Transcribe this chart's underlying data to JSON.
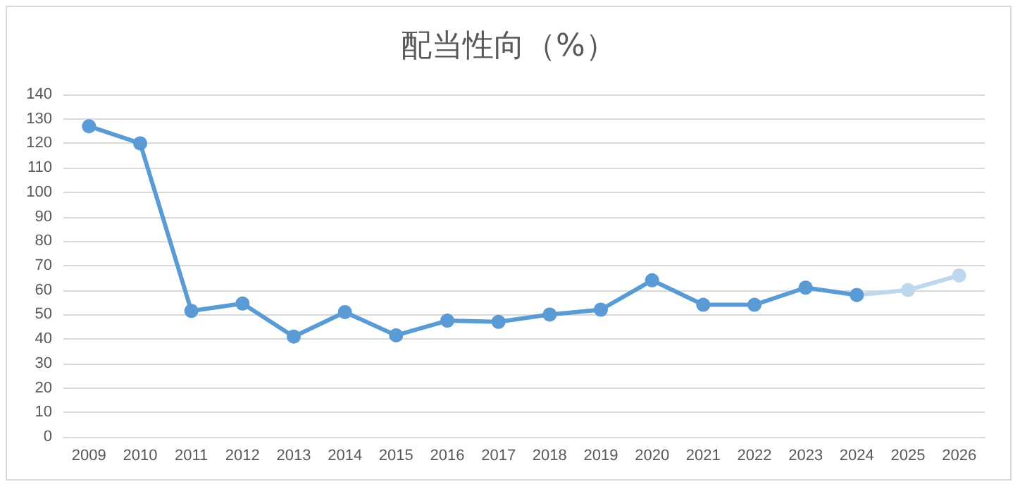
{
  "chart_data": {
    "type": "line",
    "title": "配当性向（%）",
    "categories": [
      "2009",
      "2010",
      "2011",
      "2012",
      "2013",
      "2014",
      "2015",
      "2016",
      "2017",
      "2018",
      "2019",
      "2020",
      "2021",
      "2022",
      "2023",
      "2024",
      "2025",
      "2026"
    ],
    "series": [
      {
        "color": "#5b9bd5",
        "values": [
          127,
          120,
          51.5,
          54.5,
          41,
          51,
          41.5,
          47.5,
          47,
          50,
          52,
          64,
          54,
          54,
          61,
          58,
          null,
          null
        ]
      },
      {
        "color": "#bdd7ee",
        "values": [
          null,
          null,
          null,
          null,
          null,
          null,
          null,
          null,
          null,
          null,
          null,
          null,
          null,
          null,
          null,
          58,
          60,
          66
        ]
      }
    ],
    "ylim": [
      0,
      140
    ],
    "yticks": [
      0,
      10,
      20,
      30,
      40,
      50,
      60,
      70,
      80,
      90,
      100,
      110,
      120,
      130,
      140
    ],
    "grid": "y",
    "marker": "circle",
    "line_style": "solid"
  }
}
